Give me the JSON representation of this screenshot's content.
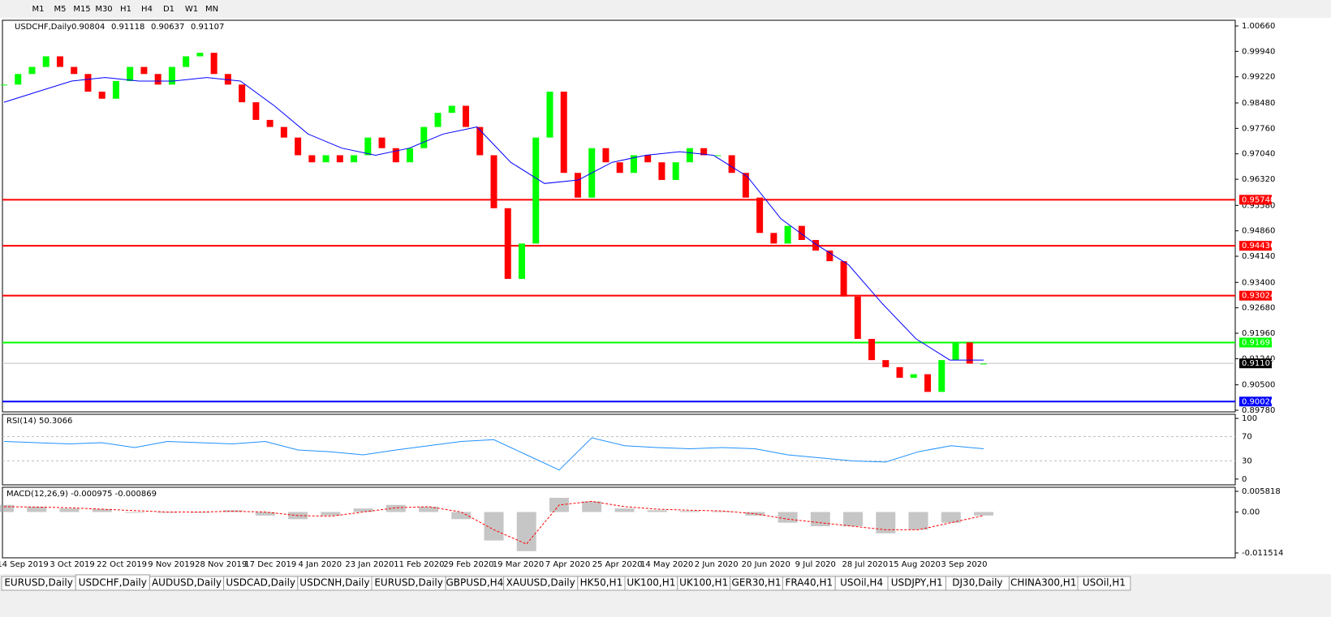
{
  "toolbar": {
    "timeframes": [
      "M1",
      "M5",
      "M15",
      "M30",
      "H1",
      "H4",
      "D1",
      "W1",
      "MN"
    ]
  },
  "chart_data": {
    "type": "candlestick",
    "symbol": "USDCHF,Daily",
    "ohlc": [
      0.90804,
      0.91118,
      0.90637,
      0.91107
    ],
    "ylim": [
      0.89734,
      1.00821
    ],
    "yticks": [
      {
        "value": 1.0066,
        "label": "1.00660"
      },
      {
        "value": 0.9994,
        "label": "0.99940"
      },
      {
        "value": 0.9922,
        "label": "0.99220"
      },
      {
        "value": 0.9848,
        "label": "0.98480"
      },
      {
        "value": 0.9776,
        "label": "0.97760"
      },
      {
        "value": 0.9704,
        "label": "0.97040"
      },
      {
        "value": 0.9632,
        "label": "0.96320"
      },
      {
        "value": 0.9558,
        "label": "0.95580"
      },
      {
        "value": 0.9486,
        "label": "0.94860"
      },
      {
        "value": 0.9414,
        "label": "0.94140"
      },
      {
        "value": 0.934,
        "label": "0.93400"
      },
      {
        "value": 0.9268,
        "label": "0.92680"
      },
      {
        "value": 0.9196,
        "label": "0.91960"
      },
      {
        "value": 0.9124,
        "label": "0.91240"
      },
      {
        "value": 0.905,
        "label": "0.90500"
      },
      {
        "value": 0.8978,
        "label": "0.89780"
      }
    ],
    "levels": [
      {
        "value": 0.9574,
        "label": "0.95740",
        "color": "#ff0000"
      },
      {
        "value": 0.94436,
        "label": "0.94436",
        "color": "#ff0000"
      },
      {
        "value": 0.93024,
        "label": "0.93024",
        "color": "#ff0000"
      },
      {
        "value": 0.91697,
        "label": "0.91697",
        "color": "#00ff00"
      },
      {
        "value": 0.90026,
        "label": "0.90026",
        "color": "#0000ff"
      }
    ],
    "current": 0.91107,
    "categories": [
      "14 Sep 2019",
      "3 Oct 2019",
      "22 Oct 2019",
      "9 Nov 2019",
      "28 Nov 2019",
      "17 Dec 2019",
      "4 Jan 2020",
      "23 Jan 2020",
      "11 Feb 2020",
      "29 Feb 2020",
      "19 Mar 2020",
      "7 Apr 2020",
      "25 Apr 2020",
      "14 May 2020",
      "2 Jun 2020",
      "20 Jun 2020",
      "9 Jul 2020",
      "28 Jul 2020",
      "15 Aug 2020",
      "3 Sep 2020"
    ],
    "price": {
      "up_color": "#00ff00",
      "down_color": "#ff0000",
      "values": [
        0.99,
        0.993,
        0.995,
        0.998,
        0.995,
        0.993,
        0.988,
        0.986,
        0.991,
        0.995,
        0.993,
        0.99,
        0.995,
        0.998,
        0.999,
        0.993,
        0.99,
        0.985,
        0.98,
        0.978,
        0.975,
        0.97,
        0.968,
        0.97,
        0.968,
        0.97,
        0.975,
        0.972,
        0.968,
        0.972,
        0.978,
        0.982,
        0.984,
        0.978,
        0.97,
        0.955,
        0.935,
        0.945,
        0.975,
        0.988,
        0.965,
        0.958,
        0.972,
        0.968,
        0.965,
        0.97,
        0.968,
        0.963,
        0.968,
        0.972,
        0.97,
        0.97,
        0.965,
        0.958,
        0.948,
        0.945,
        0.95,
        0.946,
        0.943,
        0.94,
        0.93,
        0.918,
        0.912,
        0.91,
        0.907,
        0.908,
        0.903,
        0.912,
        0.917,
        0.911,
        0.911
      ]
    },
    "ma": {
      "color": "#0000ff",
      "values": [
        0.985,
        0.988,
        0.991,
        0.992,
        0.991,
        0.991,
        0.992,
        0.991,
        0.984,
        0.976,
        0.972,
        0.97,
        0.972,
        0.976,
        0.978,
        0.968,
        0.962,
        0.963,
        0.968,
        0.97,
        0.971,
        0.97,
        0.964,
        0.952,
        0.945,
        0.939,
        0.928,
        0.918,
        0.912,
        0.912
      ]
    },
    "rsi": {
      "title": "RSI(14) 50.3066",
      "color": "#1e90ff",
      "ylim": [
        -9.5,
        106.8
      ],
      "yticks": [
        100,
        70,
        30,
        0
      ],
      "values": [
        62,
        60,
        58,
        60,
        52,
        62,
        60,
        58,
        62,
        48,
        45,
        40,
        48,
        55,
        62,
        65,
        40,
        15,
        68,
        55,
        52,
        50,
        52,
        50,
        40,
        35,
        30,
        28,
        45,
        55,
        50
      ]
    },
    "macd": {
      "title": "MACD(12,26,9) -0.000975 -0.000869",
      "ylim": [
        -0.01288,
        0.00696
      ],
      "yticks": [
        0.005818,
        {
          "value": 0,
          "label": "0.00"
        },
        -0.011514
      ],
      "histogram": {
        "color": "#a0a0a0",
        "values": [
          0.002,
          0.0015,
          0.001,
          0.0008,
          0,
          -0.0002,
          0,
          0.0005,
          -0.001,
          -0.002,
          -0.001,
          0.001,
          0.002,
          0.0015,
          -0.002,
          -0.008,
          -0.011,
          0.004,
          0.003,
          0.001,
          0.0005,
          0.0003,
          0.0002,
          -0.001,
          -0.003,
          -0.004,
          -0.004,
          -0.006,
          -0.005,
          -0.003,
          -0.001
        ]
      },
      "signal": {
        "color": "#ff0000",
        "values": [
          0.0015,
          0.0014,
          0.0012,
          0.0008,
          0.0004,
          0,
          0,
          0.0002,
          0,
          -0.001,
          -0.0012,
          0,
          0.0012,
          0.0015,
          0,
          -0.005,
          -0.009,
          0.002,
          0.003,
          0.0015,
          0.0008,
          0.0005,
          0.0003,
          -0.0005,
          -0.002,
          -0.003,
          -0.004,
          -0.005,
          -0.005,
          -0.003,
          -0.001
        ]
      }
    }
  },
  "tabs": [
    "EURUSD,Daily",
    "USDCHF,Daily",
    "AUDUSD,Daily",
    "USDCAD,Daily",
    "USDCNH,Daily",
    "EURUSD,Daily",
    "GBPUSD,H4",
    "XAUUSD,Daily",
    "HK50,H1",
    "UK100,H1",
    "UK100,H1",
    "GER30,H1",
    "FRA40,H1",
    "USOil,H4",
    "USDJPY,H1",
    "DJ30,Daily",
    "CHINA300,H1",
    "USOil,H1"
  ],
  "active_tab": "USDCHF,Daily"
}
